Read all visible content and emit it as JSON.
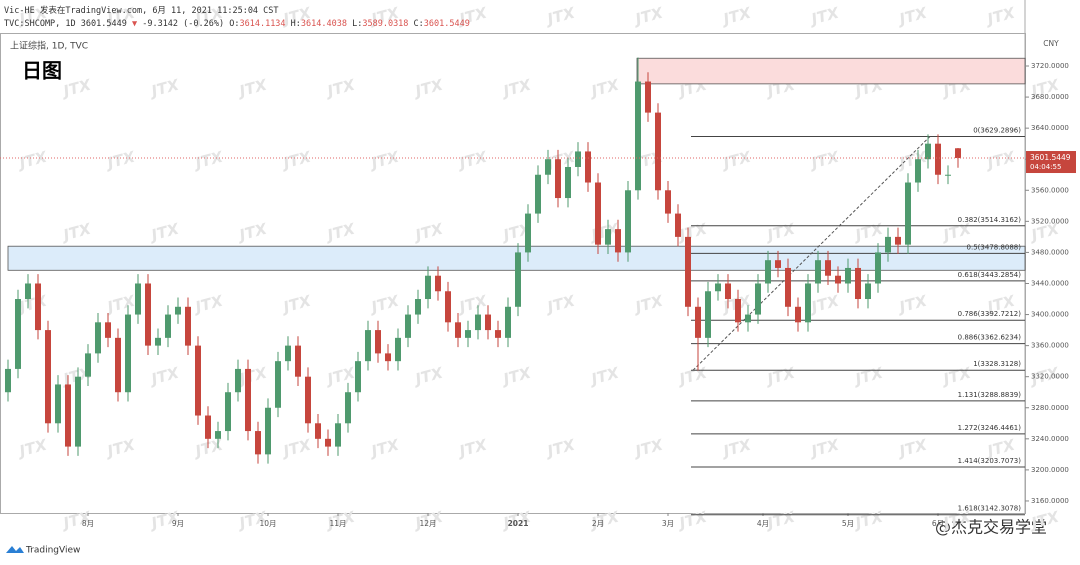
{
  "header": {
    "publisher": "Vic-HE 发表在TradingView.com, 6月 11, 2021 11:25:04 CST",
    "symbol": "TVC:SHCOMP, 1D",
    "arrow": "▼",
    "change": "-9.3142 (-0.26%)",
    "o": "O:",
    "h": "H:",
    "l": "L:",
    "c": "C:"
  },
  "brand": "TradingView",
  "watermark": "JTX",
  "footer_watermark": "@杰克交易学堂",
  "chart_data": {
    "type": "candlestick",
    "title": "日图",
    "subtitle": "上证综指, 1D, TVC",
    "currency": "CNY",
    "countdown": "04:04:55",
    "up_color": "#4f9a6e",
    "down_color": "#c6463d",
    "open": [
      3300,
      3330,
      3420,
      3440,
      3380,
      3260,
      3310,
      3230,
      3320,
      3350,
      3390,
      3370,
      3300,
      3400,
      3440,
      3360,
      3370,
      3400,
      3410,
      3360,
      3270,
      3240,
      3250,
      3300,
      3330,
      3250,
      3220,
      3280,
      3340,
      3360,
      3320,
      3260,
      3240,
      3230,
      3260,
      3300,
      3340,
      3380,
      3350,
      3340,
      3370,
      3400,
      3420,
      3450,
      3430,
      3390,
      3370,
      3380,
      3400,
      3380,
      3370,
      3410,
      3480,
      3530,
      3580,
      3600,
      3550,
      3590,
      3610,
      3570,
      3490,
      3510,
      3480,
      3560,
      3700,
      3660,
      3560,
      3530,
      3500,
      3410,
      3370,
      3430,
      3440,
      3420,
      3390,
      3400,
      3440,
      3470,
      3460,
      3410,
      3390,
      3440,
      3470,
      3450,
      3440,
      3460,
      3420,
      3440,
      3480,
      3500,
      3490,
      3570,
      3600,
      3620,
      3580,
      3614.1134
    ],
    "high": [
      3342,
      3432,
      3452,
      3452,
      3392,
      3322,
      3322,
      3332,
      3362,
      3402,
      3402,
      3382,
      3412,
      3452,
      3452,
      3382,
      3412,
      3422,
      3422,
      3372,
      3282,
      3262,
      3312,
      3342,
      3342,
      3262,
      3292,
      3352,
      3372,
      3372,
      3332,
      3272,
      3252,
      3272,
      3312,
      3352,
      3392,
      3392,
      3362,
      3382,
      3412,
      3432,
      3462,
      3462,
      3442,
      3402,
      3392,
      3412,
      3412,
      3392,
      3422,
      3492,
      3542,
      3592,
      3612,
      3612,
      3602,
      3622,
      3622,
      3582,
      3522,
      3522,
      3572,
      3731,
      3712,
      3672,
      3572,
      3542,
      3512,
      3422,
      3442,
      3452,
      3452,
      3432,
      3412,
      3452,
      3482,
      3482,
      3472,
      3422,
      3452,
      3482,
      3482,
      3462,
      3472,
      3472,
      3452,
      3492,
      3512,
      3512,
      3582,
      3612,
      3632,
      3632,
      3592,
      3614.4038
    ],
    "low": [
      3288,
      3318,
      3408,
      3368,
      3248,
      3248,
      3218,
      3218,
      3308,
      3338,
      3358,
      3288,
      3288,
      3388,
      3348,
      3348,
      3358,
      3388,
      3348,
      3258,
      3228,
      3228,
      3238,
      3288,
      3238,
      3208,
      3208,
      3268,
      3328,
      3308,
      3248,
      3228,
      3218,
      3218,
      3248,
      3288,
      3328,
      3338,
      3328,
      3328,
      3358,
      3388,
      3408,
      3418,
      3378,
      3358,
      3358,
      3368,
      3368,
      3358,
      3358,
      3398,
      3468,
      3518,
      3568,
      3538,
      3538,
      3578,
      3558,
      3478,
      3478,
      3468,
      3468,
      3548,
      3648,
      3548,
      3518,
      3488,
      3398,
      3328,
      3358,
      3418,
      3408,
      3378,
      3378,
      3388,
      3428,
      3448,
      3398,
      3378,
      3378,
      3428,
      3438,
      3428,
      3428,
      3408,
      3408,
      3428,
      3468,
      3478,
      3478,
      3558,
      3588,
      3568,
      3568,
      3589.0318
    ],
    "close": [
      3330,
      3420,
      3440,
      3380,
      3260,
      3310,
      3230,
      3320,
      3350,
      3390,
      3370,
      3300,
      3400,
      3440,
      3360,
      3370,
      3400,
      3410,
      3360,
      3270,
      3240,
      3250,
      3300,
      3330,
      3250,
      3220,
      3280,
      3340,
      3360,
      3320,
      3260,
      3240,
      3230,
      3260,
      3300,
      3340,
      3380,
      3350,
      3340,
      3370,
      3400,
      3420,
      3450,
      3430,
      3390,
      3370,
      3380,
      3400,
      3380,
      3370,
      3410,
      3480,
      3530,
      3580,
      3600,
      3550,
      3590,
      3610,
      3570,
      3490,
      3510,
      3480,
      3560,
      3700,
      3660,
      3560,
      3530,
      3500,
      3410,
      3370,
      3430,
      3440,
      3420,
      3390,
      3400,
      3440,
      3470,
      3460,
      3410,
      3390,
      3440,
      3470,
      3450,
      3440,
      3460,
      3420,
      3440,
      3480,
      3500,
      3490,
      3570,
      3600,
      3620,
      3580,
      3580,
      3601.5449
    ],
    "ylim": [
      3144.5,
      3762.5
    ],
    "yticks": [
      {
        "value": 3160,
        "label": "3160.0000"
      },
      {
        "value": 3200,
        "label": "3200.0000"
      },
      {
        "value": 3240,
        "label": "3240.0000"
      },
      {
        "value": 3280,
        "label": "3280.0000"
      },
      {
        "value": 3320,
        "label": "3320.0000"
      },
      {
        "value": 3360,
        "label": "3360.0000"
      },
      {
        "value": 3400,
        "label": "3400.0000"
      },
      {
        "value": 3440,
        "label": "3440.0000"
      },
      {
        "value": 3480,
        "label": "3480.0000"
      },
      {
        "value": 3520,
        "label": "3520.0000"
      },
      {
        "value": 3560,
        "label": "3560.0000"
      },
      {
        "value": 3600,
        "label": "3600.0000"
      },
      {
        "value": 3640,
        "label": "3640.0000"
      },
      {
        "value": 3680,
        "label": "3680.0000"
      },
      {
        "value": 3720,
        "label": "3720.0000"
      }
    ],
    "xticks": [
      {
        "value": 8,
        "label": "8月"
      },
      {
        "value": 17,
        "label": "9月"
      },
      {
        "value": 26,
        "label": "10月"
      },
      {
        "value": 33,
        "label": "11月"
      },
      {
        "value": 42,
        "label": "12月"
      },
      {
        "value": 51,
        "label": "2021"
      },
      {
        "value": 59,
        "label": "2月"
      },
      {
        "value": 66,
        "label": "3月"
      },
      {
        "value": 75.5,
        "label": "4月"
      },
      {
        "value": 84,
        "label": "5月"
      },
      {
        "value": 93,
        "label": "6月"
      }
    ],
    "zones": [
      {
        "start": 62.9,
        "top": 3730,
        "bottom": 3697,
        "color": "#fbdcdc",
        "border": "#555555"
      },
      {
        "start": 0,
        "top": 3488,
        "bottom": 3457,
        "color": "#dcecfa",
        "border": "#555555"
      }
    ],
    "trend_line": {
      "from": [
        68.5,
        3328.3128
      ],
      "to": [
        92.2,
        3629.2896
      ],
      "color": "#555555"
    },
    "fib": {
      "start": 68.3,
      "color": "#444444",
      "levels": [
        {
          "value": 3629.2896,
          "label": "0(3629.2896)"
        },
        {
          "value": 3514.3162,
          "label": "0.382(3514.3162)"
        },
        {
          "value": 3478.8088,
          "label": "0.5(3478.8088)"
        },
        {
          "value": 3443.2854,
          "label": "0.618(3443.2854)"
        },
        {
          "value": 3392.7212,
          "label": "0.786(3392.7212)"
        },
        {
          "value": 3362.6234,
          "label": "0.886(3362.6234)"
        },
        {
          "value": 3328.3128,
          "label": "1(3328.3128)"
        },
        {
          "value": 3288.8839,
          "label": "1.131(3288.8839)"
        },
        {
          "value": 3246.4461,
          "label": "1.272(3246.4461)"
        },
        {
          "value": 3203.7073,
          "label": "1.414(3203.7073)"
        },
        {
          "value": 3142.3078,
          "label": "1.618(3142.3078)"
        }
      ]
    },
    "price_line_color": "#e06666"
  }
}
